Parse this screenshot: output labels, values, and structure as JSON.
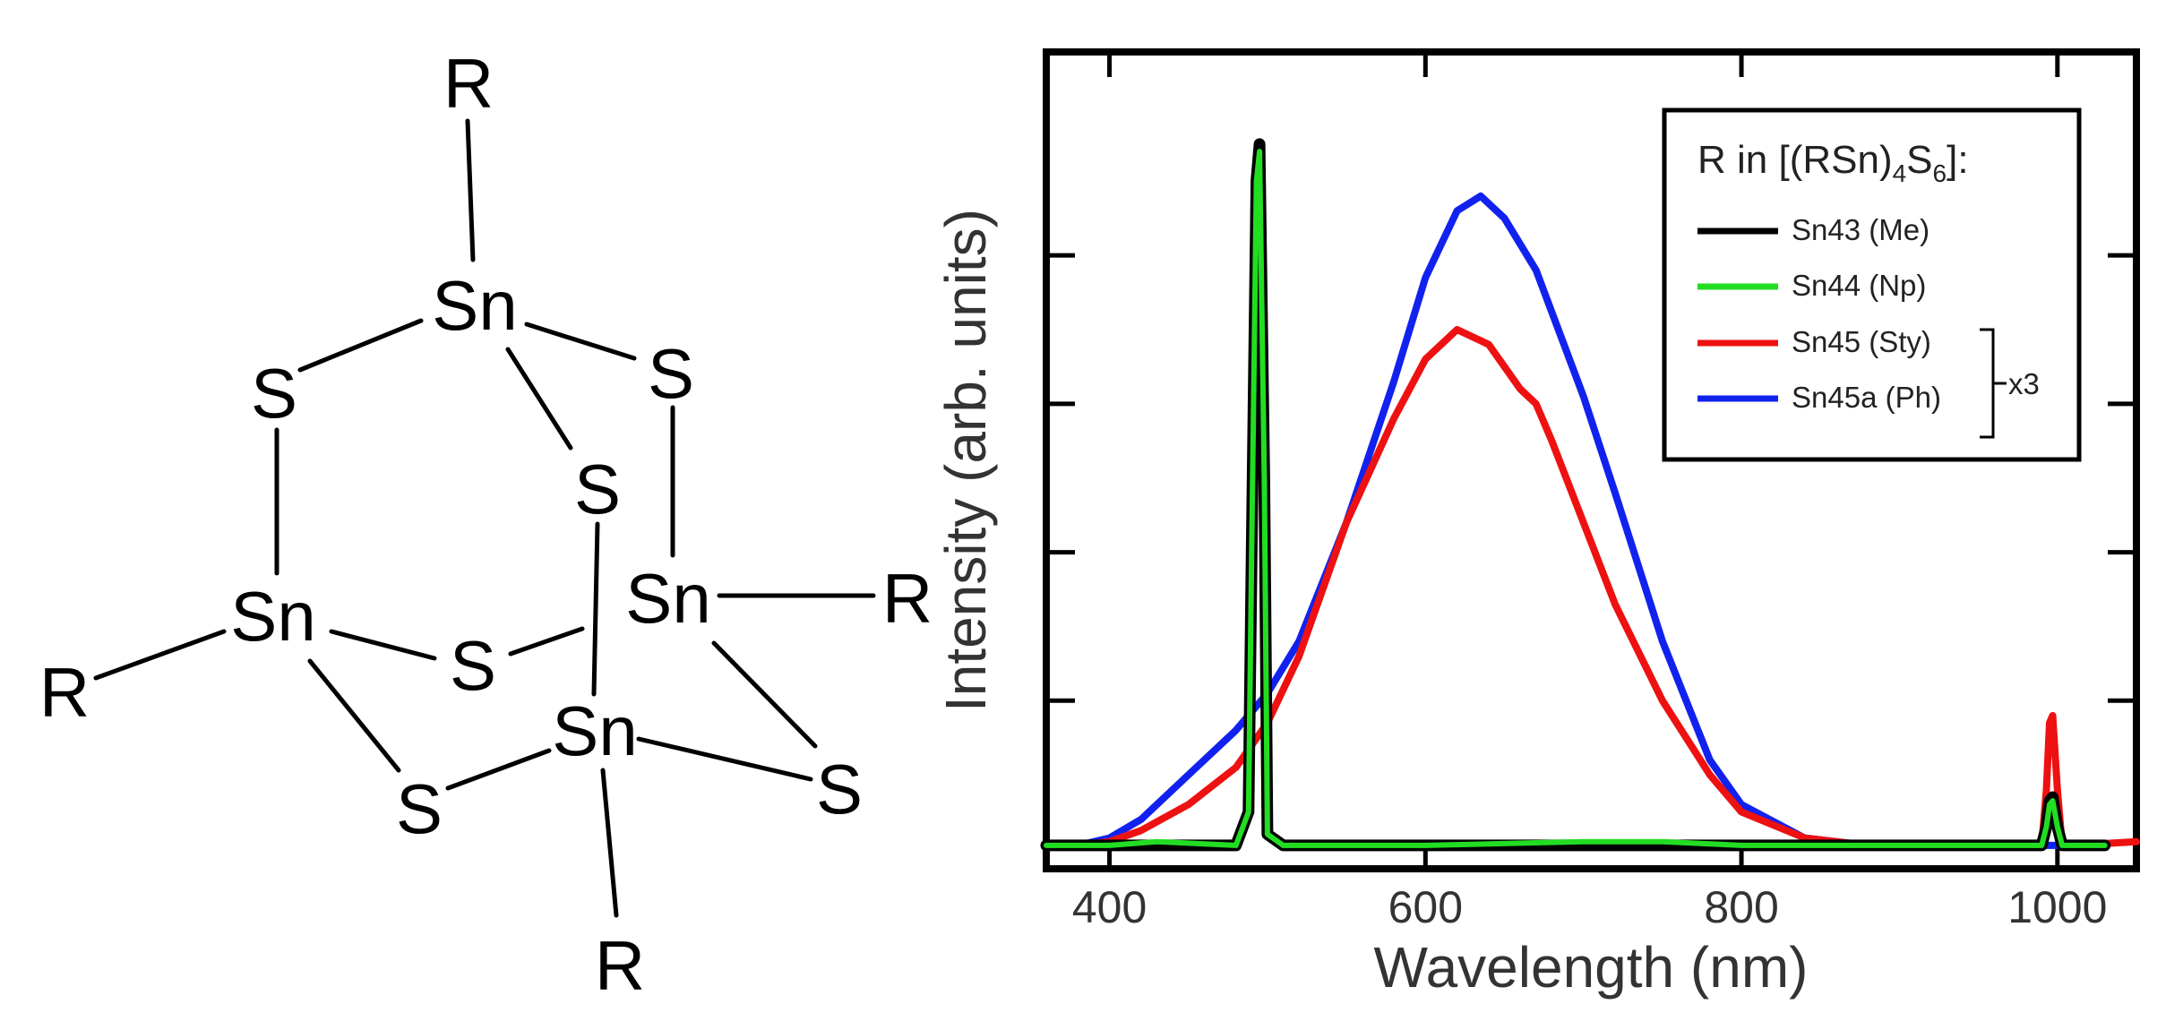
{
  "molecule": {
    "sn_label": "Sn",
    "s_label": "S",
    "r_label": "R"
  },
  "chart_data": {
    "type": "line",
    "title": "",
    "xlabel": "Wavelength (nm)",
    "ylabel": "Intensity (arb. units)",
    "xlim": [
      360,
      1050
    ],
    "ylim": [
      0,
      1.05
    ],
    "xticks": [
      400,
      600,
      800,
      1000
    ],
    "x_tick_labels": [
      "400",
      "600",
      "800",
      "1000"
    ],
    "yticks": [
      0.2,
      0.4,
      0.6,
      0.8
    ],
    "y_tick_labels_shown": false,
    "legend": {
      "title_main": "R in [(RSn)",
      "title_sub1": "4",
      "title_mid": "S",
      "title_sub2": "6",
      "title_end": "]:",
      "placement": "top-right",
      "scale_note": "x3"
    },
    "series": [
      {
        "name": "Sn43 (Me)",
        "color": "#000000",
        "x": [
          360,
          480,
          488,
          490,
          493,
          495,
          498,
          500,
          510,
          700,
          800,
          990,
          993,
          995,
          997,
          1000,
          1003,
          1030
        ],
        "y": [
          0.005,
          0.005,
          0.05,
          0.4,
          0.9,
          0.95,
          0.5,
          0.02,
          0.005,
          0.005,
          0.005,
          0.005,
          0.03,
          0.065,
          0.07,
          0.03,
          0.005,
          0.005
        ]
      },
      {
        "name": "Sn44 (Np)",
        "color": "#22dd22",
        "x": [
          360,
          400,
          430,
          480,
          488,
          490,
          493,
          495,
          498,
          500,
          510,
          600,
          700,
          750,
          800,
          990,
          993,
          995,
          997,
          1000,
          1003,
          1030
        ],
        "y": [
          0.005,
          0.005,
          0.01,
          0.005,
          0.05,
          0.4,
          0.9,
          0.94,
          0.5,
          0.02,
          0.005,
          0.005,
          0.01,
          0.01,
          0.005,
          0.005,
          0.03,
          0.06,
          0.065,
          0.03,
          0.005,
          0.005
        ]
      },
      {
        "name": "Sn45 (Sty)",
        "color": "#ee1111",
        "x": [
          380,
          400,
          420,
          450,
          480,
          500,
          520,
          550,
          580,
          600,
          620,
          640,
          660,
          670,
          680,
          700,
          720,
          750,
          780,
          800,
          840,
          880,
          990,
          993,
          995,
          997,
          1000,
          1003,
          1010,
          1050
        ],
        "y": [
          0.005,
          0.01,
          0.025,
          0.06,
          0.11,
          0.17,
          0.26,
          0.44,
          0.58,
          0.66,
          0.7,
          0.68,
          0.62,
          0.6,
          0.55,
          0.44,
          0.33,
          0.2,
          0.1,
          0.05,
          0.015,
          0.005,
          0.005,
          0.08,
          0.17,
          0.18,
          0.08,
          0.005,
          0.005,
          0.01
        ]
      },
      {
        "name": "Sn45a (Ph)",
        "color": "#1122ee",
        "x": [
          380,
          400,
          420,
          450,
          480,
          500,
          520,
          550,
          580,
          600,
          620,
          635,
          650,
          670,
          700,
          720,
          750,
          780,
          800,
          840,
          880,
          1000
        ],
        "y": [
          0.005,
          0.015,
          0.04,
          0.1,
          0.16,
          0.21,
          0.28,
          0.44,
          0.63,
          0.77,
          0.86,
          0.88,
          0.85,
          0.78,
          0.61,
          0.48,
          0.28,
          0.12,
          0.06,
          0.015,
          0.005,
          0.005
        ]
      }
    ]
  }
}
